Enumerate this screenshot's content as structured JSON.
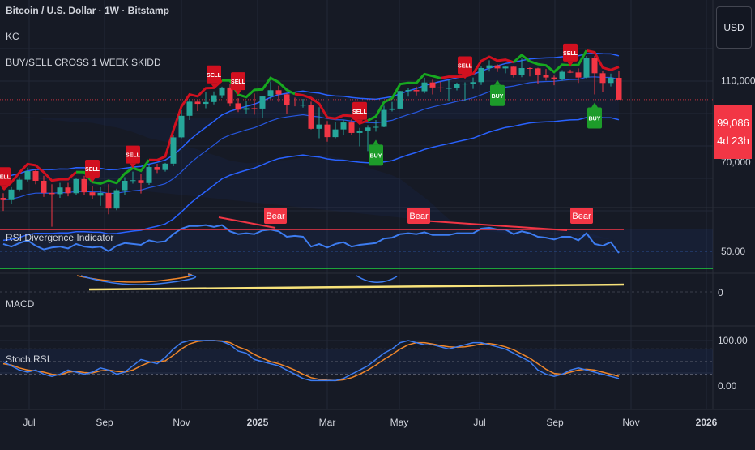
{
  "header": {
    "symbol_line": "Bitcoin / U.S. Dollar · 1W · Bitstamp",
    "indicator_kc": "KC",
    "indicator_signals": "BUY/SELL CROSS 1 WEEK SKIDD",
    "currency_button": "USD"
  },
  "last_price": {
    "value": "99,086",
    "countdown": "4d 23h"
  },
  "colors": {
    "background": "#161a25",
    "bull_candle": "#26a69a",
    "bear_candle": "#f23645",
    "band_blue": "#2962ff",
    "band_green": "#17a81f",
    "band_red": "#d1101f",
    "sell_label": "#d1101f",
    "buy_label": "#1d9c2a",
    "rsi_line": "#3d7cf0",
    "orange": "#f0862a",
    "yellow": "#f7e27a",
    "grid": "#232836"
  },
  "chart_data": [
    {
      "type": "candlestick",
      "name": "price",
      "y_ticks": [
        "110,000",
        "70,000"
      ],
      "x_ticks": [
        "Jul",
        "Sep",
        "Nov",
        "2025",
        "Mar",
        "May",
        "Jul",
        "Sep",
        "Nov",
        "2026"
      ],
      "candles": [
        [
          57500,
          59000,
          53500,
          56800
        ],
        [
          56800,
          61000,
          55500,
          60200
        ],
        [
          60200,
          64500,
          59500,
          63600
        ],
        [
          63600,
          68000,
          63000,
          66700
        ],
        [
          66700,
          67500,
          62000,
          63200
        ],
        [
          63200,
          65000,
          57800,
          59100
        ],
        [
          59100,
          62000,
          49000,
          58700
        ],
        [
          58700,
          62500,
          57500,
          60900
        ],
        [
          60900,
          62500,
          58000,
          59000
        ],
        [
          59000,
          64000,
          58500,
          63800
        ],
        [
          63800,
          65000,
          58500,
          59300
        ],
        [
          59300,
          61500,
          57000,
          58200
        ],
        [
          58200,
          61000,
          55000,
          59100
        ],
        [
          59100,
          62000,
          52500,
          54200
        ],
        [
          54200,
          60500,
          53700,
          60000
        ],
        [
          60000,
          64500,
          58500,
          63200
        ],
        [
          63200,
          66500,
          62200,
          63400
        ],
        [
          63400,
          65500,
          58900,
          62400
        ],
        [
          62400,
          69000,
          61800,
          68200
        ],
        [
          68200,
          69500,
          66000,
          67100
        ],
        [
          67100,
          69800,
          66500,
          69500
        ],
        [
          69500,
          81500,
          68500,
          80400
        ],
        [
          80400,
          93500,
          80000,
          90600
        ],
        [
          90600,
          99500,
          88500,
          98000
        ],
        [
          98000,
          98900,
          93000,
          96800
        ],
        [
          96800,
          103500,
          94500,
          97800
        ],
        [
          97800,
          103700,
          96500,
          101500
        ],
        [
          101500,
          106500,
          100000,
          106000
        ],
        [
          106000,
          108000,
          95500,
          97100
        ],
        [
          97100,
          99900,
          92500,
          93700
        ],
        [
          93700,
          98500,
          91500,
          94500
        ],
        [
          94500,
          102500,
          91200,
          94300
        ],
        [
          94300,
          101300,
          89500,
          100800
        ],
        [
          100800,
          109500,
          99500,
          104400
        ],
        [
          104400,
          107000,
          97800,
          102000
        ],
        [
          102000,
          102500,
          91400,
          96400
        ],
        [
          96400,
          100200,
          95500,
          96100
        ],
        [
          96100,
          99500,
          94800,
          96300
        ],
        [
          96300,
          98000,
          84000,
          84300
        ],
        [
          84300,
          95000,
          80000,
          86300
        ],
        [
          86300,
          88000,
          78500,
          80500
        ],
        [
          80500,
          87500,
          80000,
          84000
        ],
        [
          84000,
          88500,
          81500,
          87300
        ],
        [
          87300,
          88800,
          81300,
          82400
        ],
        [
          82400,
          84700,
          76500,
          83500
        ],
        [
          83500,
          86000,
          74500,
          84900
        ],
        [
          84900,
          88500,
          83000,
          85200
        ],
        [
          85200,
          95800,
          85000,
          93600
        ],
        [
          93600,
          97900,
          92800,
          94300
        ],
        [
          94300,
          104000,
          94000,
          103900
        ],
        [
          103900,
          105800,
          100700,
          104500
        ],
        [
          104500,
          106500,
          101400,
          103800
        ],
        [
          103800,
          111900,
          102600,
          109000
        ],
        [
          109000,
          110700,
          102000,
          106000
        ],
        [
          106000,
          109400,
          103500,
          105600
        ],
        [
          105600,
          110300,
          98400,
          105700
        ],
        [
          105700,
          108900,
          104300,
          108200
        ],
        [
          108200,
          109100,
          98200,
          108300
        ],
        [
          108300,
          112000,
          105200,
          109200
        ],
        [
          109200,
          119000,
          107500,
          118000
        ],
        [
          118000,
          123200,
          115800,
          119800
        ],
        [
          119800,
          120500,
          115500,
          117800
        ],
        [
          117800,
          119200,
          114700,
          118900
        ],
        [
          118900,
          119500,
          112000,
          113400
        ],
        [
          113400,
          124400,
          112200,
          118000
        ],
        [
          118000,
          118500,
          112700,
          117800
        ],
        [
          117800,
          118200,
          108000,
          113500
        ],
        [
          113500,
          117400,
          110200,
          112000
        ],
        [
          112000,
          113200,
          107300,
          110800
        ],
        [
          110800,
          116700,
          110000,
          115600
        ],
        [
          115600,
          117000,
          114800,
          115200
        ],
        [
          115200,
          117800,
          108700,
          112000
        ],
        [
          112000,
          126200,
          111500,
          125100
        ],
        [
          125100,
          126300,
          102000,
          114700
        ],
        [
          114700,
          116000,
          103500,
          108700
        ],
        [
          108700,
          114500,
          106600,
          111800
        ],
        [
          111800,
          116400,
          99800,
          99086
        ]
      ],
      "sell_signals": [
        0,
        11,
        16,
        26,
        29,
        44,
        57,
        70
      ],
      "buy_signals": [
        46,
        61,
        73
      ]
    },
    {
      "type": "line",
      "name": "RSI Divergence Indicator",
      "y_ticks": [
        "50.00"
      ],
      "x": "weekly bars",
      "values": [
        58,
        55,
        59,
        62,
        56,
        52,
        54,
        55,
        53,
        58,
        55,
        54,
        55,
        50,
        56,
        59,
        58,
        57,
        62,
        60,
        61,
        69,
        75,
        78,
        78,
        79,
        77,
        79,
        72,
        69,
        70,
        69,
        73,
        74,
        72,
        66,
        67,
        66,
        55,
        58,
        54,
        58,
        60,
        55,
        57,
        58,
        59,
        64,
        65,
        69,
        70,
        69,
        71,
        68,
        68,
        68,
        70,
        70,
        70,
        75,
        76,
        74,
        74,
        69,
        72,
        70,
        66,
        65,
        63,
        66,
        66,
        62,
        70,
        58,
        56,
        60,
        48
      ],
      "divergence_labels": [
        "Bear",
        "Bear",
        "Bear"
      ]
    },
    {
      "type": "line",
      "name": "MACD",
      "y_ticks": [
        "0"
      ],
      "note_visible_lines": "blue macd, orange signal, yellow histogram baseline"
    },
    {
      "type": "line",
      "name": "Stoch RSI",
      "y_ticks": [
        "100.00",
        "0.00"
      ],
      "series": [
        {
          "name": "K",
          "values": [
            50,
            40,
            30,
            25,
            30,
            20,
            15,
            20,
            30,
            25,
            20,
            25,
            35,
            30,
            20,
            25,
            40,
            55,
            50,
            45,
            60,
            80,
            95,
            100,
            100,
            100,
            100,
            98,
            90,
            75,
            70,
            55,
            50,
            45,
            40,
            30,
            20,
            10,
            5,
            5,
            5,
            5,
            10,
            20,
            30,
            40,
            55,
            70,
            80,
            95,
            100,
            95,
            90,
            90,
            85,
            80,
            85,
            90,
            95,
            95,
            90,
            85,
            80,
            70,
            60,
            50,
            30,
            20,
            15,
            20,
            30,
            35,
            30,
            25,
            20,
            15,
            10
          ]
        },
        {
          "name": "D",
          "values": [
            45,
            42,
            35,
            30,
            28,
            25,
            20,
            18,
            25,
            27,
            24,
            23,
            28,
            30,
            27,
            25,
            30,
            40,
            48,
            50,
            52,
            65,
            80,
            92,
            98,
            100,
            100,
            99,
            95,
            85,
            78,
            67,
            58,
            50,
            45,
            38,
            30,
            20,
            12,
            8,
            6,
            5,
            7,
            12,
            20,
            30,
            42,
            55,
            67,
            80,
            90,
            95,
            95,
            92,
            88,
            85,
            84,
            85,
            88,
            92,
            93,
            90,
            85,
            78,
            68,
            58,
            45,
            32,
            22,
            20,
            25,
            30,
            32,
            30,
            25,
            20,
            15
          ]
        }
      ]
    }
  ]
}
